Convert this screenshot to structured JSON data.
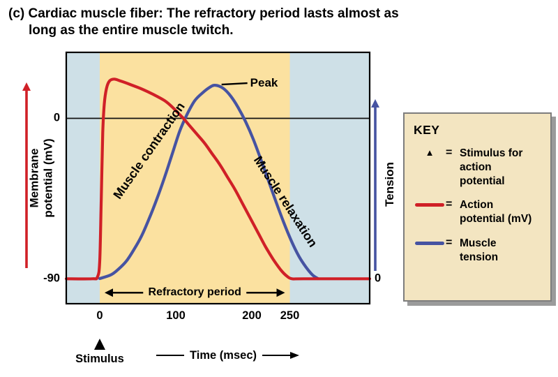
{
  "title": {
    "lead": "(c) Cardiac muscle fiber:",
    "rest": "The refractory period lasts almost as long as the entire muscle twitch."
  },
  "chart_data": {
    "type": "line",
    "x_axis": {
      "label": "Time (msec)",
      "domain": [
        -44,
        355
      ],
      "ticks": [
        0,
        100,
        200,
        250
      ]
    },
    "y_left_axis": {
      "label": "Membrane potential (mV)",
      "domain": [
        -104,
        37
      ],
      "ticks": [
        0,
        -90
      ]
    },
    "y_right_axis": {
      "label": "Tension",
      "domain": [
        -0.13,
        1.17
      ],
      "ticks": [
        0
      ]
    },
    "plot_background": "#cee0e7",
    "refractory_band_color": "#fbe1a0",
    "refractory_span_msec": [
      0,
      250
    ],
    "stimulus_time_msec": 0,
    "series": [
      {
        "name": "Action potential (mV)",
        "color": "#d02027",
        "axis": "left",
        "points": [
          [
            -44,
            -90
          ],
          [
            -10,
            -90
          ],
          [
            -3,
            -89
          ],
          [
            0,
            -80
          ],
          [
            2,
            -45
          ],
          [
            4,
            -8
          ],
          [
            6,
            8
          ],
          [
            9,
            17
          ],
          [
            13,
            21
          ],
          [
            19,
            22
          ],
          [
            27,
            21
          ],
          [
            40,
            19
          ],
          [
            55,
            16.5
          ],
          [
            70,
            13.5
          ],
          [
            85,
            10
          ],
          [
            95,
            6.5
          ],
          [
            103,
            3
          ],
          [
            110,
            0
          ],
          [
            118,
            -4
          ],
          [
            128,
            -9
          ],
          [
            138,
            -14
          ],
          [
            148,
            -20
          ],
          [
            158,
            -26
          ],
          [
            168,
            -33
          ],
          [
            178,
            -40
          ],
          [
            188,
            -48
          ],
          [
            198,
            -56
          ],
          [
            208,
            -64
          ],
          [
            218,
            -72
          ],
          [
            228,
            -79
          ],
          [
            238,
            -85
          ],
          [
            246,
            -88.5
          ],
          [
            253,
            -90
          ],
          [
            268,
            -90
          ],
          [
            355,
            -90
          ]
        ]
      },
      {
        "name": "Muscle tension",
        "color": "#4653a2",
        "axis": "right",
        "points": [
          [
            0,
            0
          ],
          [
            15,
            0.02
          ],
          [
            25,
            0.05
          ],
          [
            35,
            0.09
          ],
          [
            45,
            0.15
          ],
          [
            55,
            0.22
          ],
          [
            65,
            0.31
          ],
          [
            75,
            0.41
          ],
          [
            85,
            0.52
          ],
          [
            95,
            0.64
          ],
          [
            105,
            0.76
          ],
          [
            115,
            0.85
          ],
          [
            125,
            0.92
          ],
          [
            135,
            0.96
          ],
          [
            145,
            0.99
          ],
          [
            152,
            1.0
          ],
          [
            162,
            0.985
          ],
          [
            172,
            0.945
          ],
          [
            182,
            0.885
          ],
          [
            192,
            0.81
          ],
          [
            202,
            0.72
          ],
          [
            212,
            0.615
          ],
          [
            222,
            0.505
          ],
          [
            232,
            0.395
          ],
          [
            242,
            0.29
          ],
          [
            252,
            0.195
          ],
          [
            262,
            0.115
          ],
          [
            272,
            0.055
          ],
          [
            280,
            0.018
          ],
          [
            287,
            0
          ]
        ]
      }
    ],
    "annotations": {
      "peak": {
        "label": "Peak",
        "t_msec": 152,
        "value": 1.0
      },
      "muscle_contraction": "Muscle contraction",
      "muscle_relaxation": "Muscle relaxation",
      "refractory_period": "Refractory period",
      "stimulus": "Stimulus"
    }
  },
  "key": {
    "title": "KEY",
    "entries": [
      {
        "marker": "stimulus-triangle",
        "symbol": "▲",
        "eq": "=",
        "label": "Stimulus for action potential"
      },
      {
        "marker": "action-potential-line",
        "eq": "=",
        "label": "Action potential (mV)"
      },
      {
        "marker": "muscle-tension-line",
        "eq": "=",
        "label": "Muscle tension"
      }
    ]
  }
}
